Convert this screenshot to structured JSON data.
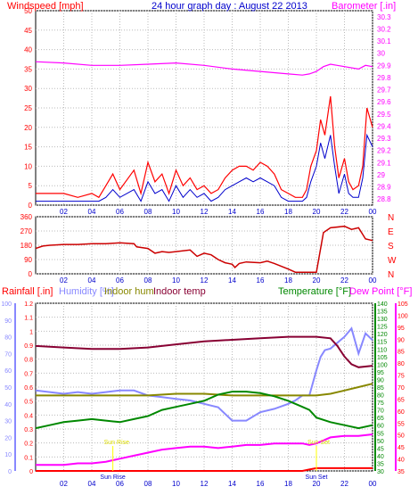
{
  "chart_data": [
    {
      "type": "line",
      "title": "24 hour graph day : August 22 2013",
      "left_axis_label": "Windspeed [mph]",
      "right_axis_label": "Barometer [.in]",
      "x_ticks": [
        "02",
        "04",
        "06",
        "08",
        "10",
        "12",
        "14",
        "16",
        "18",
        "20",
        "22",
        "00"
      ],
      "left_ticks": [
        "0",
        "5",
        "10",
        "15",
        "20",
        "25",
        "30",
        "35",
        "40",
        "45",
        "50"
      ],
      "right_ticks": [
        "28.8",
        "28.9",
        "29",
        "29.1",
        "29.2",
        "29.3",
        "29.4",
        "29.5",
        "29.6",
        "29.7",
        "29.8",
        "29.9",
        "30",
        "30.1",
        "30.2",
        "30.3"
      ],
      "ylim_left": [
        0,
        50
      ],
      "ylim_right": [
        28.75,
        30.35
      ],
      "grid": true,
      "series": [
        {
          "name": "Windspeed",
          "axis": "left",
          "color": "#ff0000",
          "x": [
            0,
            1,
            2,
            3,
            4,
            4.5,
            5,
            5.5,
            6,
            7,
            7.5,
            8,
            8.5,
            9,
            9.5,
            10,
            10.5,
            11,
            11.5,
            12,
            12.5,
            13,
            13.5,
            14,
            14.5,
            15,
            15.5,
            16,
            16.5,
            17,
            17.5,
            18,
            18.5,
            19,
            19.3,
            19.6,
            20,
            20.3,
            20.6,
            21,
            21.3,
            21.6,
            22,
            22.3,
            22.6,
            23,
            23.3,
            23.6,
            24
          ],
          "y": [
            3,
            3,
            3,
            2,
            3,
            2,
            5,
            8,
            4,
            9,
            3,
            11,
            6,
            8,
            3,
            9,
            5,
            7,
            4,
            5,
            3,
            4,
            7,
            9,
            10,
            10,
            9,
            11,
            10,
            8,
            4,
            3,
            2,
            2,
            4,
            10,
            14,
            22,
            18,
            28,
            15,
            7,
            12,
            6,
            4,
            5,
            10,
            25,
            20
          ]
        },
        {
          "name": "Gust",
          "axis": "left",
          "color": "#0000cc",
          "x": [
            0,
            1,
            2,
            3,
            4,
            4.5,
            5,
            5.5,
            6,
            7,
            7.5,
            8,
            8.5,
            9,
            9.5,
            10,
            10.5,
            11,
            11.5,
            12,
            12.5,
            13,
            13.5,
            14,
            14.5,
            15,
            15.5,
            16,
            16.5,
            17,
            17.5,
            18,
            18.5,
            19,
            19.3,
            19.6,
            20,
            20.3,
            20.6,
            21,
            21.3,
            21.6,
            22,
            22.3,
            22.6,
            23,
            23.3,
            23.6,
            24
          ],
          "y": [
            1,
            1,
            1,
            1,
            1,
            1,
            2,
            4,
            2,
            4,
            1,
            6,
            3,
            4,
            1,
            5,
            2,
            4,
            2,
            3,
            1,
            2,
            4,
            5,
            6,
            7,
            6,
            7,
            6,
            5,
            2,
            1,
            1,
            1,
            2,
            6,
            10,
            16,
            12,
            18,
            10,
            3,
            8,
            3,
            2,
            2,
            7,
            18,
            15
          ]
        },
        {
          "name": "Barometer",
          "axis": "right",
          "color": "#ff00ff",
          "x": [
            0,
            2,
            4,
            6,
            8,
            10,
            12,
            14,
            16,
            18,
            19,
            19.5,
            20,
            20.5,
            21,
            22,
            23,
            23.5,
            24
          ],
          "y": [
            29.93,
            29.92,
            29.9,
            29.9,
            29.91,
            29.92,
            29.9,
            29.87,
            29.85,
            29.83,
            29.82,
            29.83,
            29.85,
            29.89,
            29.91,
            29.89,
            29.87,
            29.9,
            29.89
          ]
        }
      ]
    },
    {
      "type": "line",
      "left_ticks": [
        "0",
        "90",
        "180",
        "270",
        "360"
      ],
      "right_ticks": [
        "N",
        "W",
        "S",
        "E",
        "N"
      ],
      "ylim": [
        0,
        360
      ],
      "x_ticks": [
        "02",
        "04",
        "06",
        "08",
        "10",
        "12",
        "14",
        "16",
        "18",
        "20",
        "22",
        "00"
      ],
      "series": [
        {
          "name": "Wind direction",
          "color": "#cc0000",
          "x": [
            0,
            0.5,
            1,
            2,
            3,
            4,
            5,
            6,
            7,
            7.2,
            8,
            8.5,
            9,
            9.5,
            10,
            11,
            11.5,
            12,
            12.5,
            13,
            13.5,
            14,
            14.2,
            14.5,
            15,
            16,
            16.5,
            17,
            18,
            18.5,
            19,
            19.5,
            20,
            20.5,
            21,
            22,
            22.5,
            23,
            23.5,
            24
          ],
          "y": [
            160,
            175,
            180,
            185,
            185,
            190,
            190,
            195,
            190,
            170,
            160,
            130,
            140,
            135,
            140,
            150,
            110,
            130,
            120,
            90,
            70,
            60,
            40,
            65,
            75,
            70,
            80,
            65,
            30,
            10,
            10,
            10,
            10,
            260,
            290,
            300,
            280,
            290,
            220,
            210
          ]
        }
      ]
    },
    {
      "type": "line",
      "labels": {
        "rainfall": "Rainfall [.in]",
        "humidity": "Humidity [%]",
        "indoor_hum": "Indoor hum",
        "indoor_temp": "Indoor temp",
        "temperature": "Temperature [°F]",
        "dew_point": "Dew Point [°F]"
      },
      "annotations": [
        "Sun Rise",
        "Sun Set"
      ],
      "x_ticks": [
        "02",
        "04",
        "06",
        "08",
        "10",
        "12",
        "14",
        "16",
        "18",
        "20",
        "22",
        "00"
      ],
      "rain_ticks": [
        "0",
        "0.1",
        "0.2",
        "0.3",
        "0.4",
        "0.5",
        "0.6",
        "0.7",
        "0.8",
        "0.9",
        "1",
        "1.1",
        "1.2"
      ],
      "humidity_ticks": [
        "0",
        "10",
        "20",
        "30",
        "40",
        "50",
        "60",
        "70",
        "80",
        "90",
        "100"
      ],
      "temp_ticks": [
        "30",
        "35",
        "40",
        "45",
        "50",
        "55",
        "60",
        "65",
        "70",
        "75",
        "80",
        "85",
        "90",
        "95",
        "100",
        "105",
        "110",
        "115",
        "120",
        "125",
        "130",
        "135",
        "140"
      ],
      "dew_ticks": [
        "35",
        "40",
        "45",
        "50",
        "55",
        "60",
        "65",
        "70",
        "75",
        "80",
        "85",
        "90",
        "95",
        "100",
        "105"
      ],
      "ylim_rain": [
        0,
        1.2
      ],
      "ylim_humidity": [
        0,
        100
      ],
      "ylim_temp": [
        30,
        140
      ],
      "series": [
        {
          "name": "Humidity",
          "scale": "humidity",
          "color": "#8888ff",
          "x": [
            0,
            1,
            2,
            3,
            4,
            5,
            6,
            7,
            8,
            9,
            10,
            11,
            12,
            13,
            14,
            15,
            16,
            17,
            18,
            18.5,
            19,
            19.5,
            20,
            20.3,
            20.6,
            21,
            22,
            22.5,
            23,
            23.5,
            24
          ],
          "y": [
            48,
            47,
            46,
            47,
            46,
            47,
            48,
            48,
            45,
            44,
            43,
            42,
            40,
            38,
            30,
            30,
            35,
            37,
            40,
            42,
            45,
            45,
            60,
            68,
            72,
            73,
            80,
            85,
            70,
            82,
            78
          ]
        },
        {
          "name": "Indoor hum",
          "scale": "humidity",
          "color": "#888800",
          "x": [
            0,
            2,
            4,
            6,
            8,
            10,
            12,
            14,
            16,
            18,
            19,
            20,
            21,
            22,
            23,
            24
          ],
          "y": [
            45,
            45,
            45,
            45,
            45,
            46,
            46,
            45,
            45,
            45,
            45,
            45,
            46,
            48,
            50,
            52
          ]
        },
        {
          "name": "Indoor temp",
          "scale": "temp",
          "color": "#880033",
          "x": [
            0,
            2,
            4,
            6,
            8,
            10,
            12,
            14,
            16,
            18,
            20,
            21,
            21.5,
            22,
            22.5,
            23,
            24
          ],
          "y": [
            112,
            111,
            110,
            110,
            111,
            113,
            115,
            116,
            117,
            118,
            118,
            117,
            112,
            105,
            100,
            98,
            99
          ]
        },
        {
          "name": "Temperature",
          "scale": "temp",
          "color": "#008800",
          "x": [
            0,
            1,
            2,
            3,
            4,
            5,
            6,
            7,
            8,
            9,
            10,
            11,
            12,
            13,
            14,
            15,
            16,
            17,
            18,
            19,
            19.5,
            20,
            21,
            22,
            23,
            24
          ],
          "y": [
            58,
            60,
            62,
            63,
            64,
            63,
            62,
            64,
            66,
            70,
            72,
            74,
            76,
            80,
            82,
            82,
            81,
            79,
            76,
            72,
            70,
            65,
            62,
            60,
            58,
            60
          ]
        },
        {
          "name": "Dew Point",
          "scale": "temp",
          "color": "#ff00ff",
          "x": [
            0,
            1,
            2,
            3,
            4,
            5,
            6,
            7,
            8,
            9,
            10,
            11,
            12,
            13,
            14,
            15,
            16,
            17,
            18,
            19,
            19.5,
            20,
            20.5,
            21,
            22,
            23,
            24
          ],
          "y": [
            34,
            34,
            34,
            35,
            35,
            36,
            38,
            40,
            42,
            44,
            45,
            46,
            46,
            45,
            46,
            47,
            47,
            48,
            48,
            48,
            47,
            48,
            50,
            52,
            53,
            53,
            54
          ]
        },
        {
          "name": "Rainfall",
          "scale": "rain",
          "color": "#ff0000",
          "x": [
            0,
            4,
            8,
            12,
            16,
            19,
            19.5,
            20,
            24
          ],
          "y": [
            0,
            0,
            0,
            0,
            0,
            0,
            0.01,
            0.02,
            0.02
          ]
        }
      ]
    }
  ]
}
